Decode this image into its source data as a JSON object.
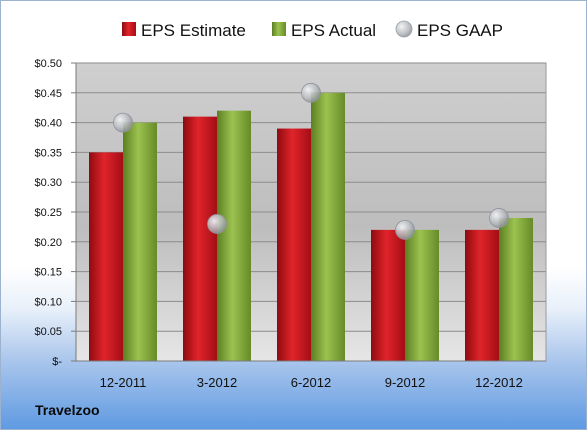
{
  "company": "Travelzoo",
  "colors": {
    "estimate": "#c0141c",
    "actual": "#7ea33a",
    "gaap": "#b9bcc1"
  },
  "chart_data": {
    "type": "bar",
    "title": "",
    "xlabel": "",
    "ylabel": "",
    "categories": [
      "12-2011",
      "3-2012",
      "6-2012",
      "9-2012",
      "12-2012"
    ],
    "series": [
      {
        "name": "EPS Estimate",
        "kind": "bar",
        "values": [
          0.35,
          0.41,
          0.39,
          0.22,
          0.22
        ]
      },
      {
        "name": "EPS Actual",
        "kind": "bar",
        "values": [
          0.4,
          0.42,
          0.45,
          0.22,
          0.24
        ]
      },
      {
        "name": "EPS GAAP",
        "kind": "marker",
        "values": [
          0.4,
          0.23,
          0.45,
          0.22,
          0.24
        ]
      }
    ],
    "ylim": [
      0,
      0.5
    ],
    "yticks": [
      0,
      0.05,
      0.1,
      0.15,
      0.2,
      0.25,
      0.3,
      0.35,
      0.4,
      0.45,
      0.5
    ],
    "ytick_labels": [
      "$-",
      "$0.05",
      "$0.10",
      "$0.15",
      "$0.20",
      "$0.25",
      "$0.30",
      "$0.35",
      "$0.40",
      "$0.45",
      "$0.50"
    ],
    "grid": true,
    "legend_position": "top"
  }
}
